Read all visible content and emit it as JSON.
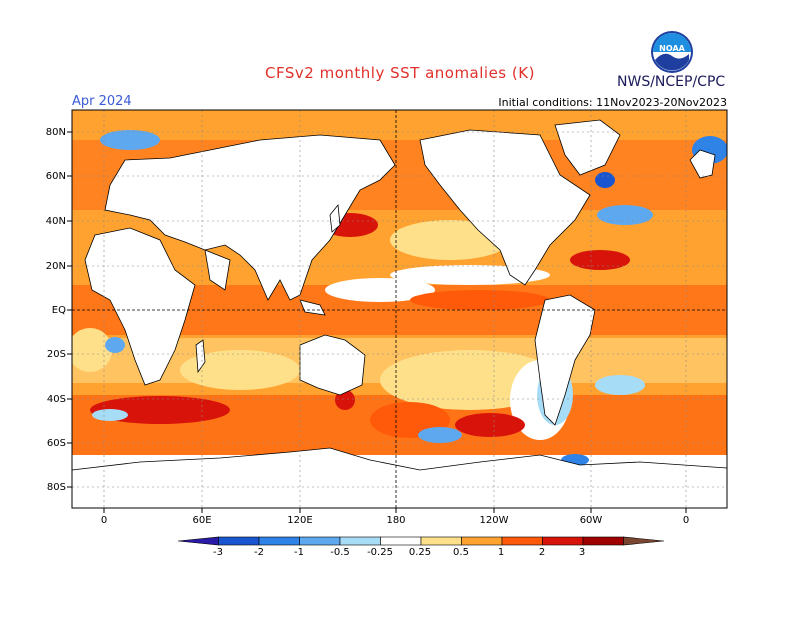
{
  "header": {
    "title": "CFSv2 monthly SST anomalies (K)",
    "period": "Apr 2024",
    "initial_conditions": "Initial conditions: 11Nov2023-20Nov2023",
    "agency": "NWS/NCEP/CPC",
    "logo_text": "NOAA"
  },
  "map": {
    "lat_labels": [
      "80N",
      "60N",
      "40N",
      "20N",
      "EQ",
      "20S",
      "40S",
      "60S",
      "80S"
    ],
    "lon_labels": [
      "0",
      "60E",
      "120E",
      "180",
      "120W",
      "60W",
      "0"
    ]
  },
  "colorbar": {
    "ticks": [
      "-3",
      "-2",
      "-1",
      "-0.5",
      "-0.25",
      "0.25",
      "0.5",
      "1",
      "2",
      "3"
    ],
    "colors": [
      "#2a1aa8",
      "#1a55d0",
      "#2f82e6",
      "#5ea8f0",
      "#a6dcf6",
      "#ffffff",
      "#ffe08a",
      "#ffa230",
      "#ff5a0a",
      "#d8140a",
      "#a00000",
      "#7a4632"
    ]
  }
}
